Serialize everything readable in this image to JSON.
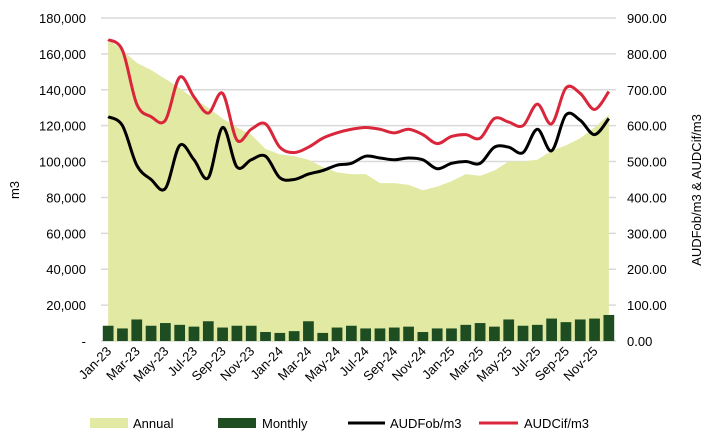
{
  "chart_data": {
    "type": "bar+area+line",
    "categories": [
      "Jan-23",
      "Feb-23",
      "Mar-23",
      "Apr-23",
      "May-23",
      "Jun-23",
      "Jul-23",
      "Aug-23",
      "Sep-23",
      "Oct-23",
      "Nov-23",
      "Dec-23",
      "Jan-24",
      "Feb-24",
      "Mar-24",
      "Apr-24",
      "May-24",
      "Jun-24",
      "Jul-24",
      "Aug-24",
      "Sep-24",
      "Oct-24",
      "Nov-24",
      "Dec-24",
      "Jan-25",
      "Feb-25",
      "Mar-25",
      "Apr-25",
      "May-25",
      "Jun-25",
      "Jul-25",
      "Aug-25",
      "Sep-25",
      "Oct-25",
      "Nov-25",
      "Dec-25"
    ],
    "tick_labels": [
      "Jan-23",
      "Mar-23",
      "May-23",
      "Jul-23",
      "Sep-23",
      "Nov-23",
      "Jan-24",
      "Mar-24",
      "May-24",
      "Jul-24",
      "Sep-24",
      "Nov-24",
      "Jan-25",
      "Mar-25",
      "May-25",
      "Jul-25",
      "Sep-25",
      "Nov-25"
    ],
    "ylabel": "m3",
    "y2label": "AUDFob/m3 & AUDCif/m3",
    "ylim": [
      0,
      180000
    ],
    "y2lim": [
      0,
      900
    ],
    "y_ticks": [
      "-",
      "20,000",
      "40,000",
      "60,000",
      "80,000",
      "100,000",
      "120,000",
      "140,000",
      "160,000",
      "180,000"
    ],
    "y2_ticks": [
      "0.00",
      "100.00",
      "200.00",
      "300.00",
      "400.00",
      "500.00",
      "600.00",
      "700.00",
      "800.00",
      "900.00"
    ],
    "grid": true,
    "legend_position": "bottom",
    "series": [
      {
        "name": "Annual",
        "type": "area",
        "axis": "left",
        "color": "#e1e9a2",
        "values": [
          168000,
          162000,
          155000,
          151000,
          146000,
          141000,
          135000,
          130000,
          124000,
          119000,
          115000,
          107000,
          104000,
          103000,
          101000,
          97000,
          94000,
          93000,
          93000,
          88000,
          88000,
          87000,
          84000,
          86000,
          89000,
          93000,
          92000,
          95000,
          100000,
          100000,
          101000,
          106000,
          109000,
          113000,
          119000,
          126000
        ]
      },
      {
        "name": "Monthly",
        "type": "bar",
        "axis": "left",
        "color": "#1e4d22",
        "values": [
          8500,
          7000,
          12000,
          8500,
          10000,
          9000,
          8000,
          11000,
          7500,
          8500,
          8500,
          5000,
          4500,
          5500,
          11000,
          4500,
          7500,
          8500,
          7000,
          7000,
          7500,
          8000,
          5000,
          7000,
          7000,
          9000,
          10000,
          8000,
          12000,
          8500,
          9000,
          12500,
          10500,
          12000,
          12500,
          14500
        ]
      },
      {
        "name": "AUDFob/m3",
        "type": "line",
        "axis": "right",
        "color": "#000000",
        "values": [
          625,
          600,
          490,
          450,
          425,
          545,
          505,
          455,
          595,
          485,
          505,
          515,
          455,
          450,
          465,
          475,
          490,
          495,
          515,
          510,
          505,
          510,
          505,
          480,
          495,
          500,
          495,
          540,
          540,
          525,
          590,
          530,
          630,
          615,
          575,
          620
        ]
      },
      {
        "name": "AUDCif/m3",
        "type": "line",
        "axis": "right",
        "color": "#d9263b",
        "values": [
          840,
          810,
          660,
          625,
          615,
          735,
          680,
          635,
          690,
          560,
          590,
          605,
          540,
          525,
          540,
          565,
          580,
          590,
          595,
          590,
          580,
          590,
          575,
          550,
          570,
          575,
          565,
          620,
          610,
          600,
          660,
          605,
          705,
          690,
          645,
          695
        ]
      }
    ]
  }
}
